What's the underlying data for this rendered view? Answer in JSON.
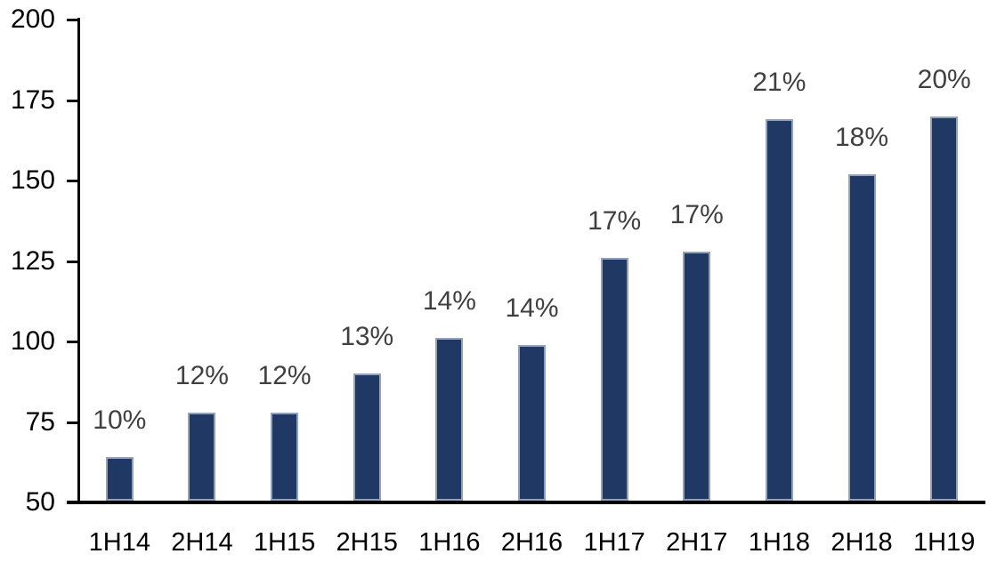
{
  "chart_data": {
    "type": "bar",
    "title": "",
    "xlabel": "",
    "ylabel": "",
    "categories": [
      "1H14",
      "2H14",
      "1H15",
      "2H15",
      "1H16",
      "2H16",
      "1H17",
      "2H17",
      "1H18",
      "2H18",
      "1H19"
    ],
    "values": [
      64,
      78,
      78,
      90,
      101,
      99,
      126,
      128,
      169,
      152,
      170
    ],
    "bar_labels": [
      "10%",
      "12%",
      "12%",
      "13%",
      "14%",
      "14%",
      "17%",
      "17%",
      "21%",
      "18%",
      "20%"
    ],
    "yticks": [
      50,
      75,
      100,
      125,
      150,
      175,
      200
    ],
    "ylim": [
      50,
      200
    ],
    "grid": false,
    "legend": false,
    "colors": {
      "bar_fill": "#1F3864",
      "bar_edge": "#93A2BB",
      "data_label": "#404040",
      "axis": "#000000",
      "background": "#FFFFFF"
    }
  }
}
